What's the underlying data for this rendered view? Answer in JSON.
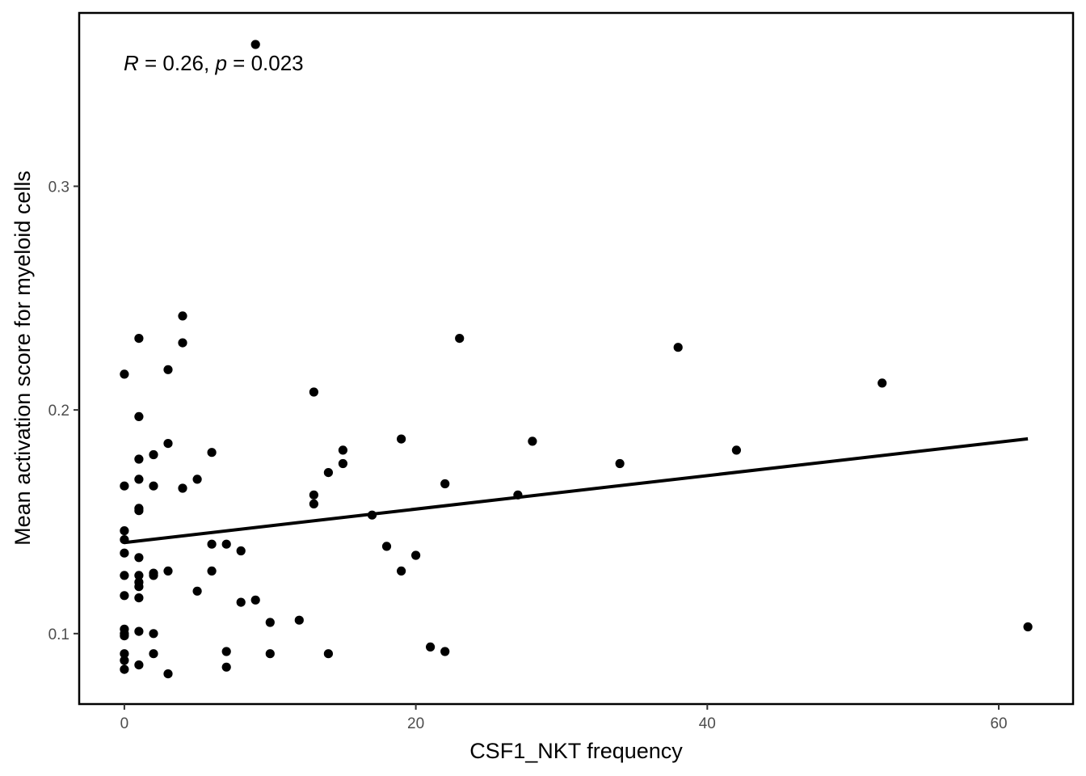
{
  "chart_data": {
    "type": "scatter",
    "xlabel": "CSF1_NKT frequency",
    "ylabel": "Mean activation score for myeloid cells",
    "xlim": [
      -3.1,
      65.1
    ],
    "ylim": [
      0.0685,
      0.3775
    ],
    "x_ticks": [
      0,
      20,
      40,
      60
    ],
    "y_ticks": [
      0.1,
      0.2,
      0.3
    ],
    "x_tick_labels": [
      "0",
      "20",
      "40",
      "60"
    ],
    "y_tick_labels": [
      "0.1",
      "0.2",
      "0.3"
    ],
    "grid": false,
    "annotation": {
      "r_symbol": "R",
      "r_text": " = 0.26, ",
      "p_symbol": "p",
      "p_text": " = 0.023"
    },
    "trend_line": {
      "x": [
        0,
        62
      ],
      "y": [
        0.1407,
        0.1871
      ]
    },
    "point_color": "#000000",
    "points": [
      [
        9,
        0.3634
      ],
      [
        0,
        0.216
      ],
      [
        0,
        0.166
      ],
      [
        0,
        0.146
      ],
      [
        0,
        0.142
      ],
      [
        0,
        0.136
      ],
      [
        0,
        0.126
      ],
      [
        0,
        0.117
      ],
      [
        0,
        0.102
      ],
      [
        0,
        0.1
      ],
      [
        0,
        0.099
      ],
      [
        0,
        0.091
      ],
      [
        0,
        0.088
      ],
      [
        0,
        0.084
      ],
      [
        1,
        0.232
      ],
      [
        1,
        0.197
      ],
      [
        1,
        0.178
      ],
      [
        1,
        0.169
      ],
      [
        1,
        0.156
      ],
      [
        1,
        0.155
      ],
      [
        1,
        0.134
      ],
      [
        1,
        0.126
      ],
      [
        1,
        0.123
      ],
      [
        1,
        0.121
      ],
      [
        1,
        0.116
      ],
      [
        1,
        0.101
      ],
      [
        1,
        0.086
      ],
      [
        2,
        0.18
      ],
      [
        2,
        0.166
      ],
      [
        2,
        0.127
      ],
      [
        2,
        0.126
      ],
      [
        2,
        0.1
      ],
      [
        2,
        0.091
      ],
      [
        3,
        0.218
      ],
      [
        3,
        0.185
      ],
      [
        3,
        0.128
      ],
      [
        3,
        0.082
      ],
      [
        4,
        0.242
      ],
      [
        4,
        0.23
      ],
      [
        4,
        0.165
      ],
      [
        5,
        0.169
      ],
      [
        5,
        0.119
      ],
      [
        6,
        0.181
      ],
      [
        6,
        0.14
      ],
      [
        6,
        0.128
      ],
      [
        7,
        0.14
      ],
      [
        7,
        0.092
      ],
      [
        7,
        0.085
      ],
      [
        8,
        0.137
      ],
      [
        8,
        0.114
      ],
      [
        9,
        0.115
      ],
      [
        10,
        0.105
      ],
      [
        10,
        0.091
      ],
      [
        12,
        0.106
      ],
      [
        13,
        0.208
      ],
      [
        13,
        0.162
      ],
      [
        13,
        0.158
      ],
      [
        14,
        0.172
      ],
      [
        14,
        0.091
      ],
      [
        15,
        0.182
      ],
      [
        15,
        0.176
      ],
      [
        17,
        0.153
      ],
      [
        18,
        0.139
      ],
      [
        19,
        0.187
      ],
      [
        19,
        0.128
      ],
      [
        20,
        0.135
      ],
      [
        21,
        0.094
      ],
      [
        22,
        0.167
      ],
      [
        22,
        0.092
      ],
      [
        23,
        0.232
      ],
      [
        27,
        0.162
      ],
      [
        28,
        0.186
      ],
      [
        34,
        0.176
      ],
      [
        38,
        0.228
      ],
      [
        42,
        0.182
      ],
      [
        52,
        0.212
      ],
      [
        62,
        0.103
      ]
    ]
  }
}
